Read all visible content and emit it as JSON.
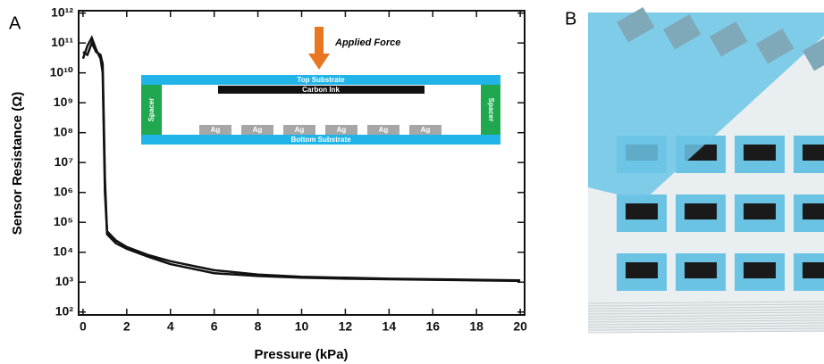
{
  "panels": {
    "left": "A",
    "right": "B"
  },
  "chart_data": {
    "type": "line",
    "xlabel": "Pressure (kPa)",
    "ylabel": "Sensor Resistance (Ω)",
    "yscale": "log",
    "grid": false,
    "xlim": [
      -0.2,
      20.2
    ],
    "ylim": [
      80,
      1200000000000
    ],
    "xticks": [
      0,
      2,
      4,
      6,
      8,
      10,
      12,
      14,
      16,
      18,
      20
    ],
    "yticks": [
      {
        "value": 100,
        "label": "10²"
      },
      {
        "value": 1000,
        "label": "10³"
      },
      {
        "value": 10000,
        "label": "10⁴"
      },
      {
        "value": 100000,
        "label": "10⁵"
      },
      {
        "value": 1000000,
        "label": "10⁶"
      },
      {
        "value": 10000000,
        "label": "10⁷"
      },
      {
        "value": 100000000,
        "label": "10⁸"
      },
      {
        "value": 1000000000,
        "label": "10⁹"
      },
      {
        "value": 10000000000,
        "label": "10¹⁰"
      },
      {
        "value": 100000000000,
        "label": "10¹¹"
      },
      {
        "value": 1000000000000,
        "label": "10¹²"
      }
    ],
    "x": [
      0,
      0.2,
      0.4,
      0.6,
      0.8,
      0.9,
      1.0,
      1.1,
      1.5,
      2,
      3,
      4,
      6,
      8,
      10,
      12,
      14,
      16,
      18,
      20
    ],
    "series": [
      {
        "color": "#111111",
        "values": [
          30000000000,
          80000000000,
          150000000000,
          60000000000,
          30000000000,
          10000000000,
          1000000,
          50000,
          25000,
          15000,
          8000,
          5000,
          2500,
          1800,
          1500,
          1400,
          1300,
          1250,
          1200,
          1150
        ]
      },
      {
        "color": "#111111",
        "values": [
          50000000000,
          40000000000,
          100000000000,
          50000000000,
          40000000000,
          20000000000,
          3000000,
          40000,
          20000,
          13000,
          7000,
          4000,
          2000,
          1600,
          1400,
          1300,
          1250,
          1200,
          1150,
          1100
        ]
      }
    ],
    "inset": {
      "force": "Applied Force",
      "top": "Top Substrate",
      "ink": "Carbon Ink",
      "spacer_left": "Spacer",
      "spacer_right": "Spacer",
      "electrodes": [
        "Ag",
        "Ag",
        "Ag",
        "Ag",
        "Ag",
        "Ag"
      ],
      "bottom": "Bottom Substrate"
    }
  }
}
